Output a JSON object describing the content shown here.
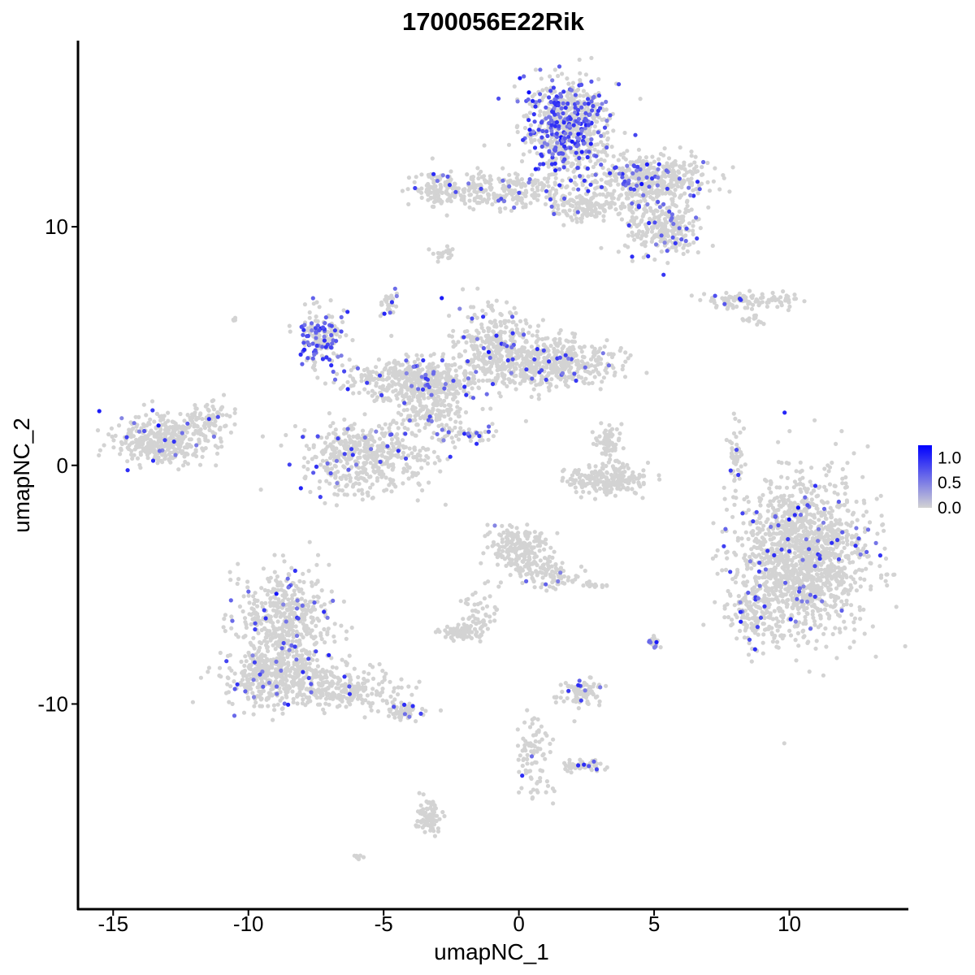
{
  "chart_data": {
    "type": "scatter",
    "title": "1700056E22Rik",
    "xlabel": "umapNC_1",
    "ylabel": "umapNC_2",
    "xlim": [
      -16.3,
      14.4
    ],
    "ylim": [
      -18.6,
      17.8
    ],
    "xticks": [
      -15,
      -10,
      -5,
      0,
      5,
      10
    ],
    "xtick_labels": [
      "-15",
      "-10",
      "-5",
      "0",
      "5",
      "10"
    ],
    "yticks": [
      -10,
      0,
      10
    ],
    "ytick_labels": [
      "-10",
      "0",
      "10"
    ],
    "grid": false,
    "legend": {
      "position": "right",
      "type": "colorbar",
      "range": [
        0,
        1.25
      ],
      "ticks": [
        0.0,
        0.5,
        1.0
      ],
      "tick_labels": [
        "0.0",
        "0.5",
        "1.0"
      ],
      "color_low": "#d3d3d3",
      "color_high": "#0000ff"
    },
    "clusters": [
      {
        "x": 1.8,
        "y": 14.2,
        "sx": 0.9,
        "sy": 1.1,
        "n": 700,
        "rate": 0.32
      },
      {
        "x": 4.7,
        "y": 12.0,
        "sx": 1.3,
        "sy": 0.6,
        "n": 450,
        "rate": 0.1
      },
      {
        "x": 5.3,
        "y": 10.0,
        "sx": 0.8,
        "sy": 0.7,
        "n": 260,
        "rate": 0.12
      },
      {
        "x": -0.5,
        "y": 11.5,
        "sx": 1.6,
        "sy": 0.45,
        "n": 280,
        "rate": 0.04
      },
      {
        "x": 2.6,
        "y": 10.8,
        "sx": 0.9,
        "sy": 0.35,
        "n": 140,
        "rate": 0.03
      },
      {
        "x": -2.9,
        "y": 11.6,
        "sx": 0.45,
        "sy": 0.45,
        "n": 90,
        "rate": 0.08
      },
      {
        "x": -2.7,
        "y": 8.9,
        "sx": 0.25,
        "sy": 0.2,
        "n": 20,
        "rate": 0.0
      },
      {
        "x": 8.6,
        "y": 6.9,
        "sx": 1.1,
        "sy": 0.2,
        "n": 110,
        "rate": 0.07
      },
      {
        "x": 8.6,
        "y": 6.1,
        "sx": 0.3,
        "sy": 0.15,
        "n": 15,
        "rate": 0.0
      },
      {
        "x": -7.3,
        "y": 5.3,
        "sx": 0.5,
        "sy": 0.7,
        "n": 180,
        "rate": 0.35
      },
      {
        "x": -1.0,
        "y": 5.1,
        "sx": 0.8,
        "sy": 0.9,
        "n": 240,
        "rate": 0.07
      },
      {
        "x": 1.0,
        "y": 4.3,
        "sx": 1.5,
        "sy": 0.6,
        "n": 520,
        "rate": 0.05
      },
      {
        "x": -4.0,
        "y": 3.6,
        "sx": 1.4,
        "sy": 0.5,
        "n": 330,
        "rate": 0.06
      },
      {
        "x": -4.8,
        "y": 6.8,
        "sx": 0.2,
        "sy": 0.4,
        "n": 30,
        "rate": 0.1
      },
      {
        "x": -3.2,
        "y": 2.7,
        "sx": 0.9,
        "sy": 0.9,
        "n": 260,
        "rate": 0.04
      },
      {
        "x": -5.6,
        "y": 0.3,
        "sx": 1.5,
        "sy": 0.9,
        "n": 480,
        "rate": 0.06
      },
      {
        "x": -2.0,
        "y": 1.3,
        "sx": 0.6,
        "sy": 0.25,
        "n": 45,
        "rate": 0.25
      },
      {
        "x": -13.2,
        "y": 1.0,
        "sx": 1.0,
        "sy": 0.6,
        "n": 380,
        "rate": 0.04
      },
      {
        "x": -11.5,
        "y": 1.9,
        "sx": 0.6,
        "sy": 0.5,
        "n": 70,
        "rate": 0.02
      },
      {
        "x": -10.5,
        "y": 6.1,
        "sx": 0.05,
        "sy": 0.05,
        "n": 4,
        "rate": 0.0
      },
      {
        "x": 3.3,
        "y": 0.9,
        "sx": 0.3,
        "sy": 0.4,
        "n": 70,
        "rate": 0.0
      },
      {
        "x": 3.3,
        "y": -0.6,
        "sx": 0.9,
        "sy": 0.35,
        "n": 210,
        "rate": 0.01
      },
      {
        "x": 8.0,
        "y": 0.6,
        "sx": 0.15,
        "sy": 0.8,
        "n": 45,
        "rate": 0.02
      },
      {
        "x": 10.5,
        "y": -3.9,
        "sx": 1.4,
        "sy": 1.9,
        "n": 1500,
        "rate": 0.04
      },
      {
        "x": 8.6,
        "y": -6.3,
        "sx": 0.5,
        "sy": 0.8,
        "n": 130,
        "rate": 0.1
      },
      {
        "x": 0.0,
        "y": -3.5,
        "sx": 0.6,
        "sy": 0.6,
        "n": 220,
        "rate": 0.01
      },
      {
        "x": 1.2,
        "y": -4.6,
        "sx": 0.6,
        "sy": 0.35,
        "n": 80,
        "rate": 0.02
      },
      {
        "x": -1.4,
        "y": -6.3,
        "sx": 0.4,
        "sy": 0.6,
        "n": 60,
        "rate": 0.0
      },
      {
        "x": -2.2,
        "y": -7.0,
        "sx": 0.4,
        "sy": 0.15,
        "n": 70,
        "rate": 0.0
      },
      {
        "x": 2.8,
        "y": -5.0,
        "sx": 0.3,
        "sy": 0.07,
        "n": 18,
        "rate": 0.0
      },
      {
        "x": 5.0,
        "y": -7.4,
        "sx": 0.12,
        "sy": 0.15,
        "n": 25,
        "rate": 0.4
      },
      {
        "x": 2.3,
        "y": -9.5,
        "sx": 0.5,
        "sy": 0.3,
        "n": 90,
        "rate": 0.08
      },
      {
        "x": -8.6,
        "y": -6.5,
        "sx": 1.0,
        "sy": 1.3,
        "n": 480,
        "rate": 0.05
      },
      {
        "x": -8.9,
        "y": -8.9,
        "sx": 1.2,
        "sy": 0.7,
        "n": 420,
        "rate": 0.06
      },
      {
        "x": -6.4,
        "y": -9.4,
        "sx": 1.3,
        "sy": 0.45,
        "n": 220,
        "rate": 0.02
      },
      {
        "x": -4.3,
        "y": -10.3,
        "sx": 0.5,
        "sy": 0.25,
        "n": 60,
        "rate": 0.03
      },
      {
        "x": -3.3,
        "y": -14.7,
        "sx": 0.25,
        "sy": 0.5,
        "n": 80,
        "rate": 0.02
      },
      {
        "x": -5.9,
        "y": -16.4,
        "sx": 0.1,
        "sy": 0.07,
        "n": 8,
        "rate": 0.0
      },
      {
        "x": 0.5,
        "y": -11.8,
        "sx": 0.3,
        "sy": 0.6,
        "n": 60,
        "rate": 0.02
      },
      {
        "x": 2.3,
        "y": -12.6,
        "sx": 0.5,
        "sy": 0.15,
        "n": 50,
        "rate": 0.08
      },
      {
        "x": 0.6,
        "y": -13.5,
        "sx": 0.3,
        "sy": 0.5,
        "n": 25,
        "rate": 0.0
      }
    ]
  }
}
